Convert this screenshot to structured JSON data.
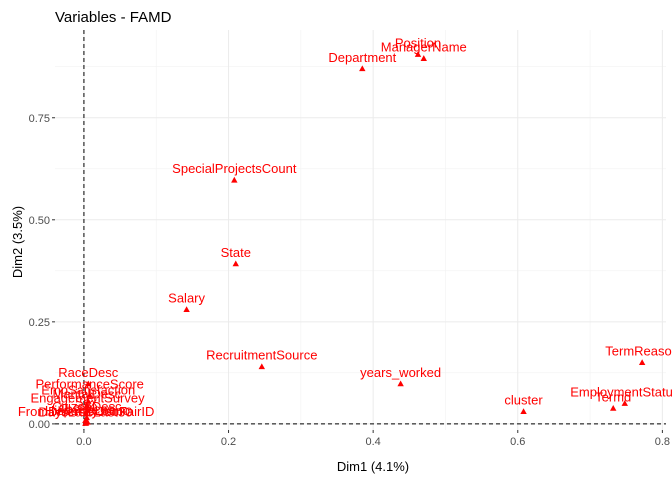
{
  "chart_data": {
    "type": "scatter",
    "title": "Variables - FAMD",
    "xlabel": "Dim1 (4.1%)",
    "ylabel": "Dim2 (3.5%)",
    "xlim": [
      -0.04,
      0.805
    ],
    "ylim": [
      -0.015,
      0.965
    ],
    "xticks": [
      0.0,
      0.2,
      0.4,
      0.6,
      0.8
    ],
    "xtick_labels": [
      "0.0",
      "0.2",
      "0.4",
      "0.6",
      "0.8"
    ],
    "yticks": [
      0.0,
      0.25,
      0.5,
      0.75
    ],
    "ytick_labels": [
      "0.00",
      "0.25",
      "0.50",
      "0.75"
    ],
    "grid": true,
    "reference_lines": {
      "x": 0,
      "y": 0
    },
    "point_color": "#ff0000",
    "points": [
      {
        "label": "Position",
        "x": 0.462,
        "y": 0.905
      },
      {
        "label": "ManagerName",
        "x": 0.47,
        "y": 0.895
      },
      {
        "label": "Department",
        "x": 0.385,
        "y": 0.87
      },
      {
        "label": "SpecialProjectsCount",
        "x": 0.208,
        "y": 0.597
      },
      {
        "label": "State",
        "x": 0.21,
        "y": 0.392
      },
      {
        "label": "Salary",
        "x": 0.142,
        "y": 0.28
      },
      {
        "label": "RecruitmentSource",
        "x": 0.246,
        "y": 0.14
      },
      {
        "label": "years_worked",
        "x": 0.438,
        "y": 0.098
      },
      {
        "label": "RaceDesc",
        "x": 0.006,
        "y": 0.098
      },
      {
        "label": "PerformanceScore",
        "x": 0.008,
        "y": 0.07
      },
      {
        "label": "cluster",
        "x": 0.608,
        "y": 0.03
      },
      {
        "label": "TermReason",
        "x": 0.772,
        "y": 0.15
      },
      {
        "label": "EmploymentStatus",
        "x": 0.748,
        "y": 0.05
      },
      {
        "label": "Termd",
        "x": 0.732,
        "y": 0.038
      },
      {
        "label": "EmpSatisfaction",
        "x": 0.006,
        "y": 0.055
      },
      {
        "label": "MaritalDesc",
        "x": 0.004,
        "y": 0.045
      },
      {
        "label": "EngagementSurvey",
        "x": 0.005,
        "y": 0.035
      },
      {
        "label": "Sex",
        "x": 0.003,
        "y": 0.025
      },
      {
        "label": "CitizenDesc",
        "x": 0.004,
        "y": 0.015
      },
      {
        "label": "Absences",
        "x": 0.002,
        "y": 0.008
      },
      {
        "label": "HispanicLatino",
        "x": 0.005,
        "y": 0.004
      },
      {
        "label": "FromDiversityJobFairID",
        "x": 0.003,
        "y": 0.002
      },
      {
        "label": "DaysLateLast30",
        "x": 0.002,
        "y": 0.001
      }
    ]
  }
}
